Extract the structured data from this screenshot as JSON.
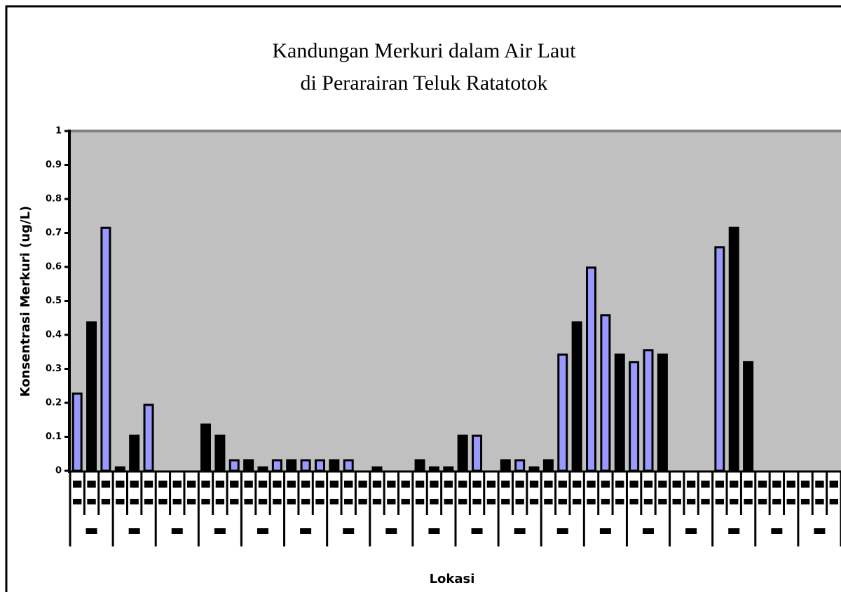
{
  "chart_data": {
    "type": "bar",
    "title": [
      "Kandungan Merkuri dalam Air Laut",
      "di Perarairan Teluk Ratatotok"
    ],
    "y_label": "Konsentrasi Merkuri (ug/L)",
    "x_label": "Lokasi",
    "values": [
      0.227,
      0.437,
      0.715,
      0.01,
      0.103,
      0.194,
      null,
      null,
      null,
      0.136,
      0.103,
      0.031,
      0.031,
      0.01,
      0.031,
      0.031,
      0.031,
      0.031,
      0.031,
      0.031,
      null,
      0.01,
      null,
      null,
      0.031,
      0.01,
      0.01,
      0.103,
      0.103,
      null,
      0.031,
      0.031,
      0.01,
      0.031,
      0.342,
      0.437,
      0.598,
      0.458,
      0.342,
      0.32,
      0.355,
      0.342,
      null,
      null,
      null,
      0.658,
      0.715,
      0.32,
      null,
      null,
      null,
      null,
      null,
      null
    ],
    "colors": [
      "#9999ff",
      "#000000",
      "#9999ff",
      "#000000",
      "#000000",
      "#9999ff",
      null,
      null,
      null,
      "#000000",
      "#000000",
      "#9999ff",
      "#000000",
      "#000000",
      "#9999ff",
      "#000000",
      "#9999ff",
      "#9999ff",
      "#000000",
      "#9999ff",
      null,
      "#000000",
      null,
      null,
      "#000000",
      "#000000",
      "#000000",
      "#000000",
      "#9999ff",
      null,
      "#000000",
      "#9999ff",
      "#000000",
      "#000000",
      "#9999ff",
      "#000000",
      "#9999ff",
      "#9999ff",
      "#000000",
      "#9999ff",
      "#9999ff",
      "#000000",
      null,
      null,
      null,
      "#9999ff",
      "#000000",
      "#000000",
      null,
      null,
      null,
      null,
      null,
      null
    ],
    "group_size": 3,
    "ylim": [
      0,
      1
    ],
    "yticks": [
      0,
      0.1,
      0.2,
      0.3,
      0.4,
      0.5,
      0.6,
      0.7,
      0.8,
      0.9,
      1
    ],
    "plot_background": "#c0c0c0"
  }
}
